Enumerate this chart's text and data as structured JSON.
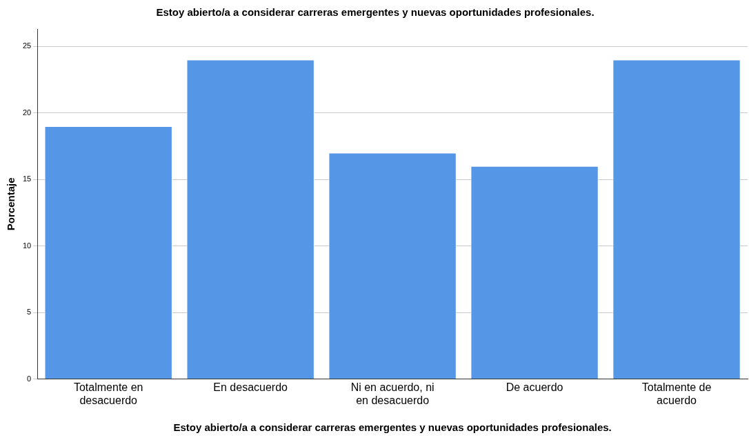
{
  "chart_data": {
    "type": "bar",
    "title": "Estoy abierto/a a considerar carreras emergentes y nuevas oportunidades profesionales.",
    "xlabel": "Estoy abierto/a a considerar carreras emergentes y nuevas oportunidades profesionales.",
    "ylabel": "Porcentaje",
    "categories": [
      "Totalmente en desacuerdo",
      "En desacuerdo",
      "Ni en acuerdo, ni en desacuerdo",
      "De acuerdo",
      "Totalmente de acuerdo"
    ],
    "values": [
      19,
      24,
      17,
      16,
      24
    ],
    "color": "#5596e6",
    "ylim": [
      0,
      26.3
    ],
    "yticks": [
      0,
      5,
      10,
      15,
      20,
      25
    ],
    "grid": "y",
    "legend": false
  }
}
